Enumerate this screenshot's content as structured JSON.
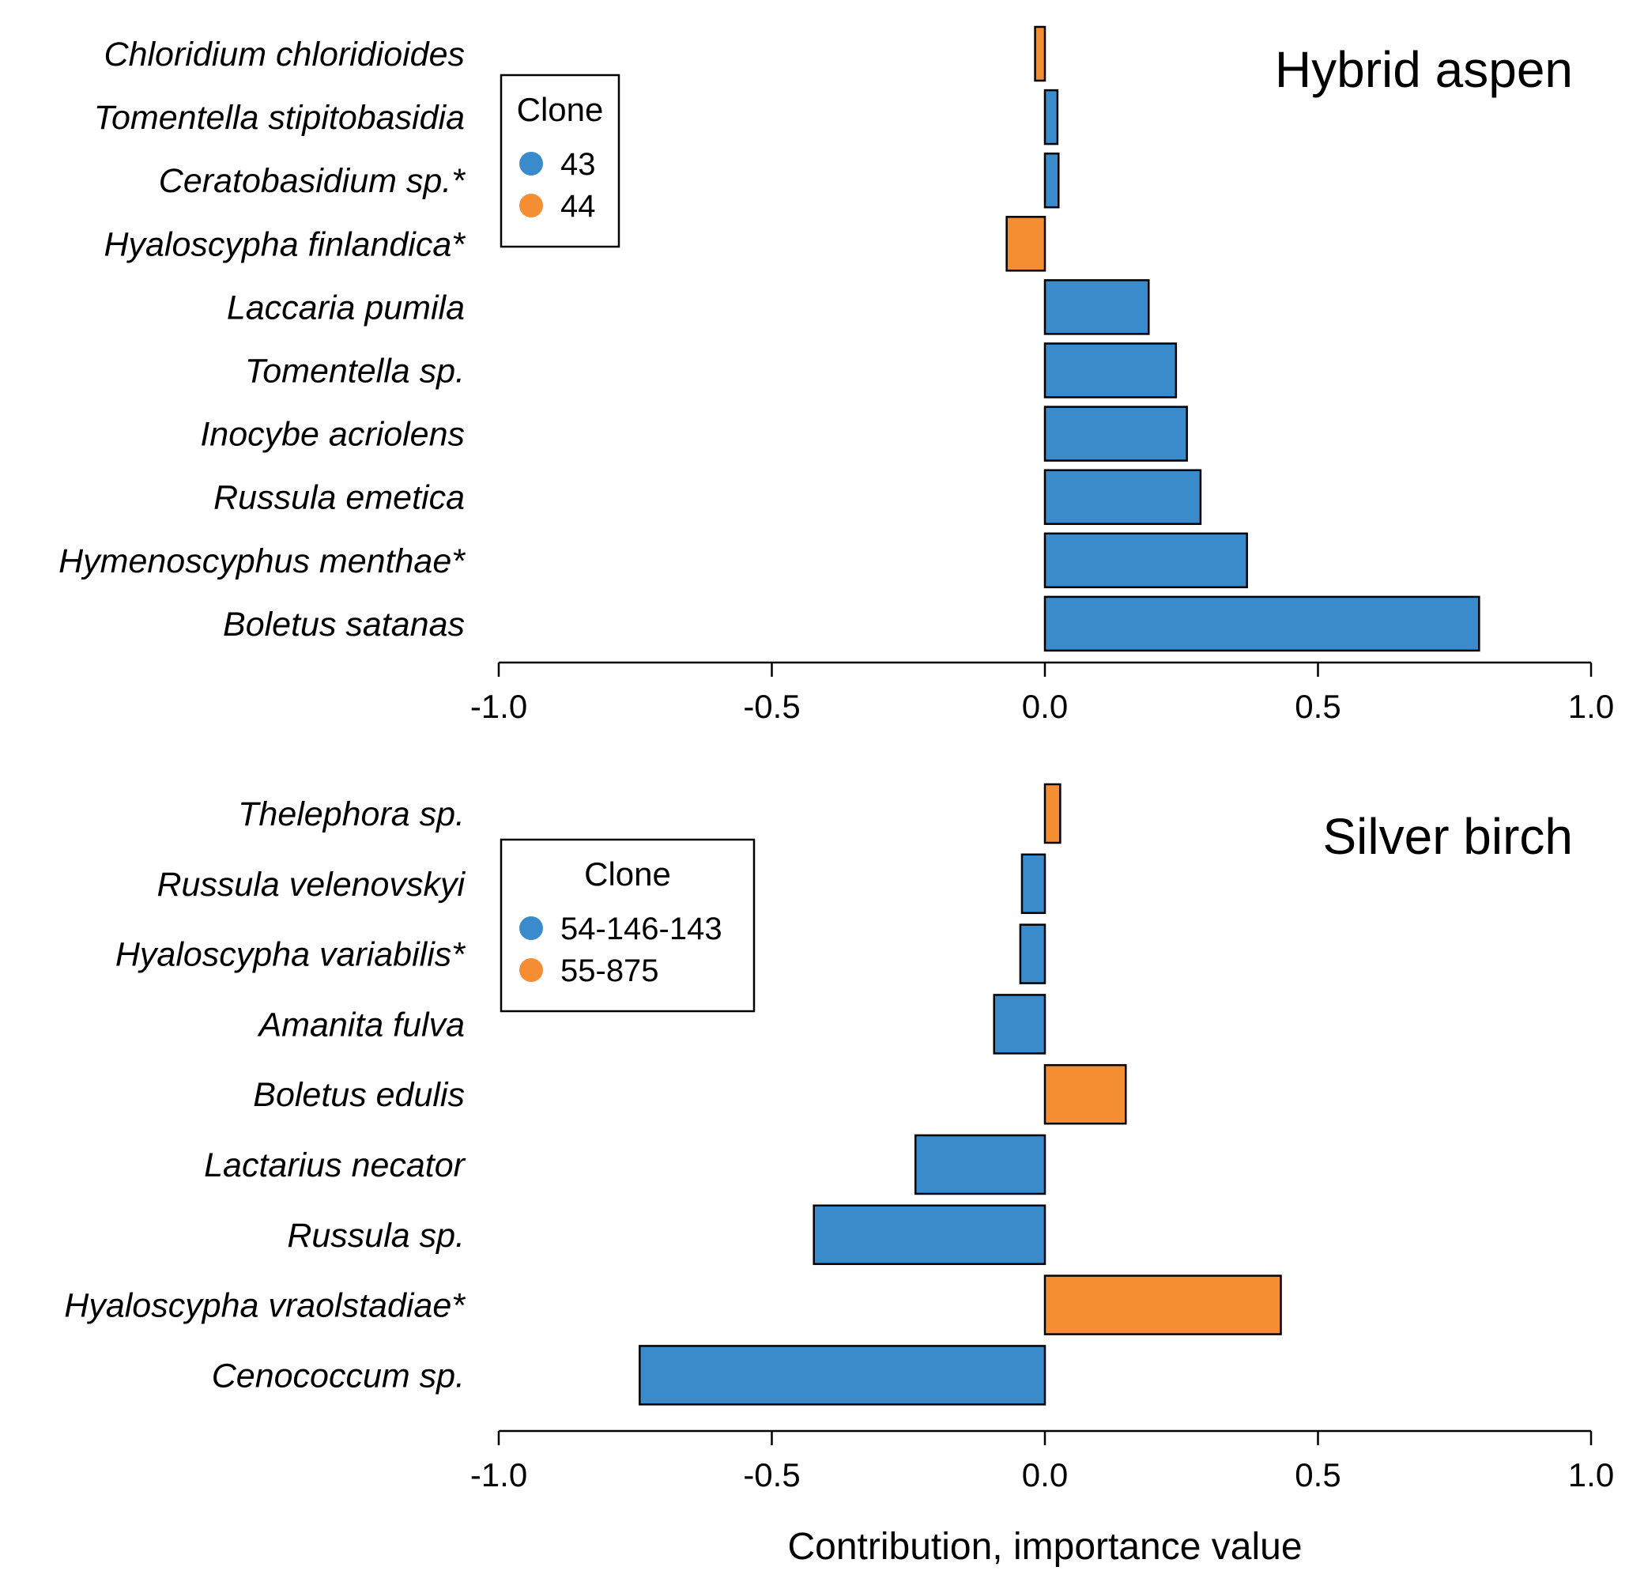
{
  "colors": {
    "blue": "#3a8bcb",
    "orange": "#f58d33"
  },
  "chart_data": [
    {
      "type": "bar",
      "orientation": "horizontal",
      "title": "Hybrid aspen",
      "xlabel": "",
      "xlim": [
        -1.0,
        1.0
      ],
      "xticks": [
        "-1.0",
        "-0.5",
        "0.0",
        "0.5",
        "1.0"
      ],
      "legend": {
        "title": "Clone",
        "placement": "top-left",
        "entries": [
          {
            "label": "43",
            "color": "#3a8bcb"
          },
          {
            "label": "44",
            "color": "#f58d33"
          }
        ]
      },
      "categories": [
        "Chloridium chloridioides",
        "Tomentella stipitobasidia",
        "Ceratobasidium sp.*",
        "Hyaloscypha finlandica*",
        "Laccaria pumila",
        "Tomentella sp.",
        "Inocybe acriolens",
        "Russula emetica",
        "Hymenoscyphus menthae*",
        "Boletus satanas"
      ],
      "values": [
        -0.018,
        0.023,
        0.025,
        -0.07,
        0.19,
        0.24,
        0.26,
        0.285,
        0.37,
        0.795
      ],
      "clone": [
        "44",
        "43",
        "43",
        "44",
        "43",
        "43",
        "43",
        "43",
        "43",
        "43"
      ]
    },
    {
      "type": "bar",
      "orientation": "horizontal",
      "title": "Silver birch",
      "xlabel": "Contribution, importance value",
      "xlim": [
        -1.0,
        1.0
      ],
      "xticks": [
        "-1.0",
        "-0.5",
        "0.0",
        "0.5",
        "1.0"
      ],
      "legend": {
        "title": "Clone",
        "placement": "top-left",
        "entries": [
          {
            "label": "54-146-143",
            "color": "#3a8bcb"
          },
          {
            "label": "55-875",
            "color": "#f58d33"
          }
        ]
      },
      "categories": [
        "Thelephora sp.",
        "Russula velenovskyi",
        "Hyaloscypha variabilis*",
        "Amanita fulva",
        "Boletus edulis",
        "Lactarius necator",
        "Russula sp.",
        "Hyaloscypha vraolstadiae*",
        "Cenococcum sp."
      ],
      "values": [
        0.028,
        -0.042,
        -0.045,
        -0.093,
        0.148,
        -0.237,
        -0.423,
        0.432,
        -0.742
      ],
      "clone": [
        "55-875",
        "54-146-143",
        "54-146-143",
        "54-146-143",
        "55-875",
        "54-146-143",
        "54-146-143",
        "55-875",
        "54-146-143"
      ]
    }
  ]
}
